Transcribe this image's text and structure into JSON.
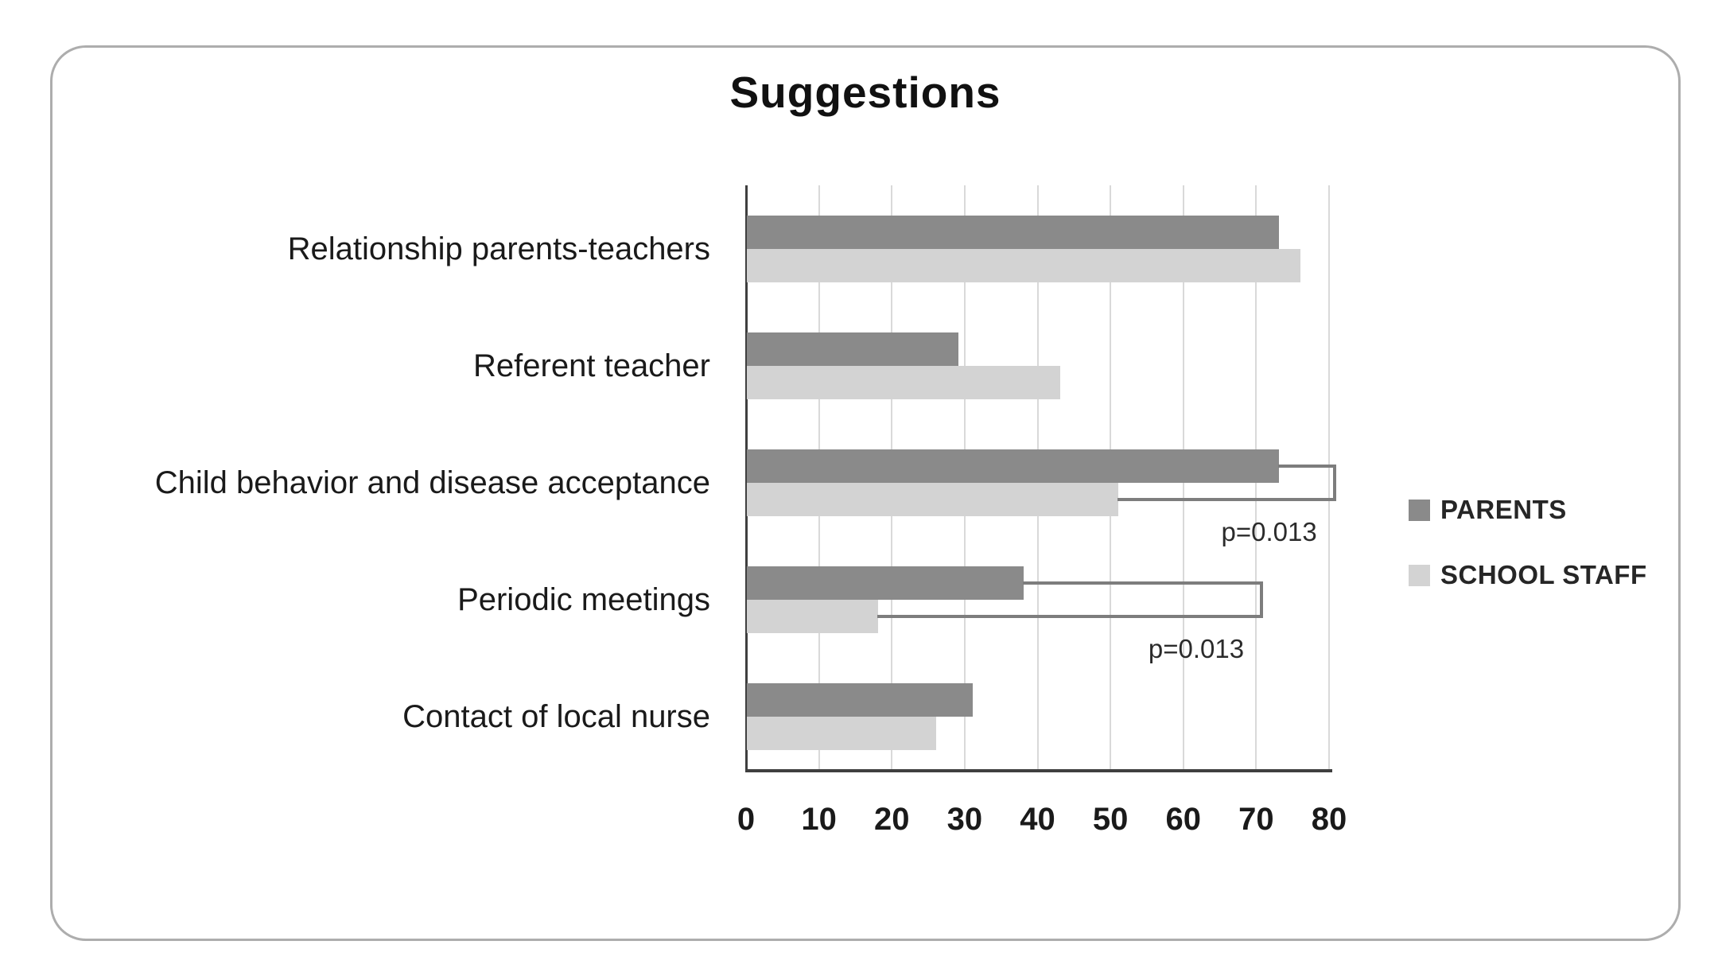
{
  "chart_data": {
    "type": "bar",
    "orientation": "horizontal",
    "title": "Suggestions",
    "categories": [
      "Relationship parents-teachers",
      "Referent teacher",
      "Child behavior and disease acceptance",
      "Periodic meetings",
      "Contact of local nurse"
    ],
    "series": [
      {
        "name": "PARENTS",
        "color": "#8a8a8a",
        "values": [
          73,
          29,
          73,
          38,
          31
        ]
      },
      {
        "name": "SCHOOL STAFF",
        "color": "#d3d3d3",
        "values": [
          76,
          43,
          51,
          18,
          26
        ]
      }
    ],
    "x_axis": {
      "min": 0,
      "max": 80,
      "tick_step": 10,
      "tick_labels": [
        "0",
        "10",
        "20",
        "30",
        "40",
        "50",
        "60",
        "70",
        "80"
      ]
    },
    "grid": "vertical-only",
    "legend_position": "right",
    "annotations": [
      {
        "text": "p=0.013",
        "category_index": 2,
        "bracket_end_value": 80.5
      },
      {
        "text": "p=0.013",
        "category_index": 3,
        "bracket_end_value": 70.5
      }
    ]
  },
  "colors": {
    "card_border": "#adadad",
    "gridline": "#d9d9d9",
    "axis": "#3f3f3f",
    "bracket_line": "#7d7d7d",
    "text": "#1a1a1a",
    "background": "#ffffff"
  }
}
